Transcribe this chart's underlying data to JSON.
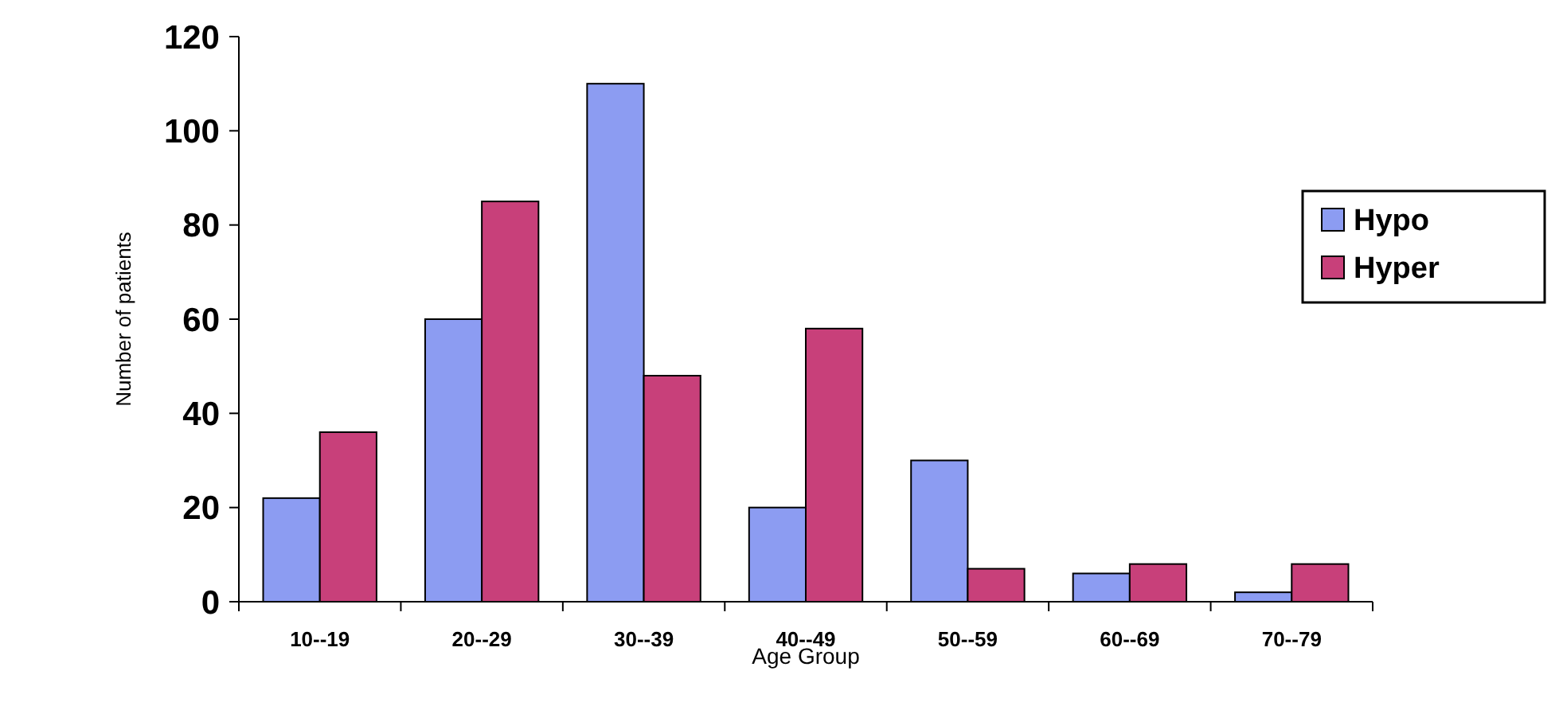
{
  "chart_data": {
    "type": "bar",
    "xlabel": "Age Group",
    "ylabel": "Number of patients",
    "categories": [
      "10--19",
      "20--29",
      "30--39",
      "40--49",
      "50--59",
      "60--69",
      "70--79"
    ],
    "series": [
      {
        "name": "Hypo",
        "color": "#8c9cf2",
        "values": [
          22,
          60,
          110,
          20,
          30,
          6,
          2
        ]
      },
      {
        "name": "Hyper",
        "color": "#c8407a",
        "values": [
          36,
          85,
          48,
          58,
          7,
          8,
          8
        ]
      }
    ],
    "ylim": [
      0,
      120
    ],
    "yticks": [
      0,
      20,
      40,
      60,
      80,
      100,
      120
    ],
    "grid": false,
    "legend": "right"
  }
}
